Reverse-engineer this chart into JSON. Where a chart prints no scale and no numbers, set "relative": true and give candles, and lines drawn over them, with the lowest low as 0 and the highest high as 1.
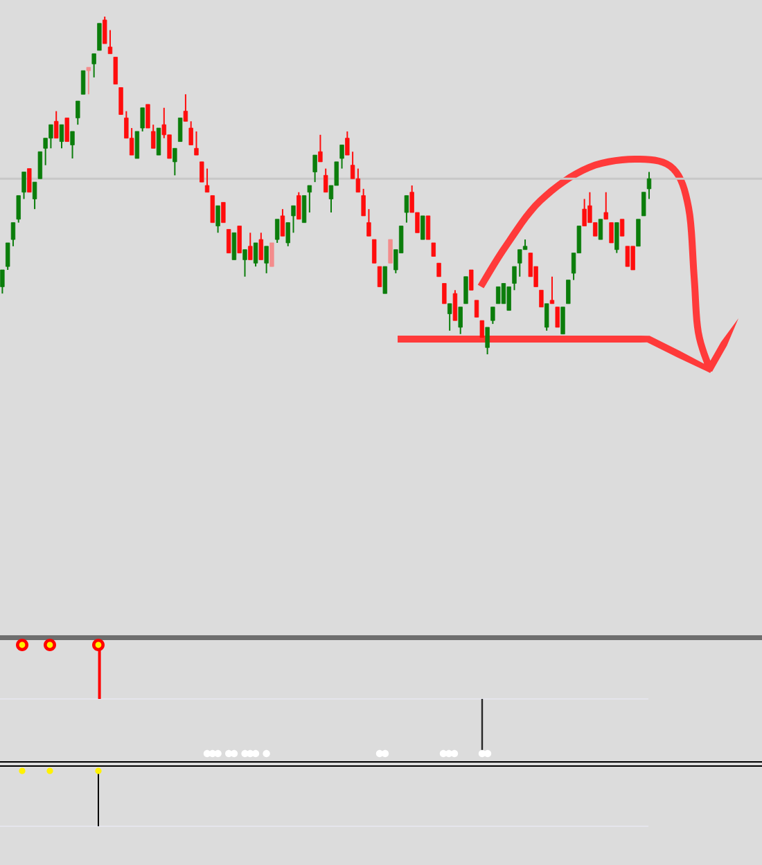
{
  "chart_data": [
    {
      "type": "candlestick",
      "relative": true,
      "categories": [
        null,
        null,
        null,
        null,
        null,
        null,
        null,
        null,
        null,
        null,
        null,
        null,
        null,
        null,
        null,
        null,
        null,
        null,
        null,
        null,
        null,
        null,
        null,
        null,
        null,
        null,
        null,
        null,
        null,
        null,
        null,
        null,
        null,
        null,
        null,
        null,
        null,
        null,
        null,
        null,
        null,
        null,
        null,
        null,
        null,
        null,
        null,
        null,
        null,
        null,
        null,
        null,
        null,
        null,
        null,
        null,
        null,
        null,
        null,
        null,
        null,
        null,
        null,
        null,
        null,
        null,
        null,
        null,
        null,
        null,
        null,
        null,
        null,
        null,
        null,
        null,
        null,
        null,
        null,
        null,
        null,
        null,
        null,
        null,
        null,
        null,
        null,
        null,
        null,
        null,
        null,
        null,
        null,
        null,
        null,
        null,
        null,
        null,
        null,
        null,
        null,
        null,
        null,
        null,
        null,
        null,
        null,
        null,
        null,
        null,
        null,
        null,
        null,
        null,
        null,
        null,
        null,
        null,
        null,
        null,
        null
      ],
      "ohlc": [
        [
          0.2,
          0.25,
          0.18,
          0.25
        ],
        [
          0.26,
          0.33,
          0.25,
          0.33
        ],
        [
          0.34,
          0.39,
          0.32,
          0.39
        ],
        [
          0.4,
          0.47,
          0.39,
          0.47
        ],
        [
          0.48,
          0.54,
          0.46,
          0.54
        ],
        [
          0.55,
          0.55,
          0.48,
          0.48
        ],
        [
          0.46,
          0.51,
          0.43,
          0.51
        ],
        [
          0.52,
          0.6,
          0.52,
          0.6
        ],
        [
          0.61,
          0.64,
          0.56,
          0.64
        ],
        [
          0.64,
          0.68,
          0.61,
          0.68
        ],
        [
          0.69,
          0.72,
          0.64,
          0.64
        ],
        [
          0.63,
          0.68,
          0.61,
          0.68
        ],
        [
          0.7,
          0.7,
          0.63,
          0.63
        ],
        [
          0.62,
          0.66,
          0.58,
          0.66
        ],
        [
          0.7,
          0.75,
          0.68,
          0.75
        ],
        [
          0.77,
          0.84,
          0.77,
          0.84
        ],
        [
          0.85,
          0.85,
          0.77,
          0.84
        ],
        [
          0.86,
          0.89,
          0.82,
          0.89
        ],
        [
          0.9,
          0.98,
          0.9,
          0.98
        ],
        [
          0.99,
          1,
          0.92,
          0.92
        ],
        [
          0.91,
          0.96,
          0.89,
          0.89
        ],
        [
          0.88,
          0.88,
          0.8,
          0.8
        ],
        [
          0.79,
          0.79,
          0.71,
          0.71
        ],
        [
          0.7,
          0.72,
          0.64,
          0.64
        ],
        [
          0.64,
          0.67,
          0.59,
          0.59
        ],
        [
          0.58,
          0.66,
          0.58,
          0.66
        ],
        [
          0.67,
          0.73,
          0.66,
          0.73
        ],
        [
          0.74,
          0.74,
          0.67,
          0.67
        ],
        [
          0.66,
          0.68,
          0.61,
          0.61
        ],
        [
          0.59,
          0.67,
          0.59,
          0.67
        ],
        [
          0.68,
          0.73,
          0.64,
          0.65
        ],
        [
          0.65,
          0.65,
          0.58,
          0.58
        ],
        [
          0.57,
          0.61,
          0.53,
          0.61
        ],
        [
          0.63,
          0.7,
          0.63,
          0.7
        ],
        [
          0.72,
          0.77,
          0.69,
          0.69
        ],
        [
          0.67,
          0.69,
          0.62,
          0.62
        ],
        [
          0.61,
          0.66,
          0.59,
          0.59
        ],
        [
          0.57,
          0.57,
          0.51,
          0.51
        ],
        [
          0.5,
          0.55,
          0.48,
          0.48
        ],
        [
          0.47,
          0.47,
          0.39,
          0.39
        ],
        [
          0.38,
          0.44,
          0.36,
          0.44
        ],
        [
          0.45,
          0.45,
          0.39,
          0.39
        ],
        [
          0.37,
          0.37,
          0.3,
          0.3
        ],
        [
          0.28,
          0.36,
          0.28,
          0.36
        ],
        [
          0.38,
          0.38,
          0.3,
          0.3
        ],
        [
          0.28,
          0.31,
          0.23,
          0.31
        ],
        [
          0.32,
          0.36,
          0.28,
          0.28
        ],
        [
          0.27,
          0.33,
          0.26,
          0.33
        ],
        [
          0.34,
          0.36,
          0.28,
          0.28
        ],
        [
          0.27,
          0.32,
          0.24,
          0.32
        ],
        [
          0.33,
          0.33,
          0.26,
          0.26
        ],
        [
          0.34,
          0.4,
          0.33,
          0.4
        ],
        [
          0.41,
          0.43,
          0.35,
          0.35
        ],
        [
          0.33,
          0.39,
          0.32,
          0.39
        ],
        [
          0.41,
          0.44,
          0.36,
          0.44
        ],
        [
          0.47,
          0.48,
          0.4,
          0.4
        ],
        [
          0.39,
          0.47,
          0.39,
          0.47
        ],
        [
          0.48,
          0.5,
          0.42,
          0.5
        ],
        [
          0.54,
          0.59,
          0.51,
          0.59
        ],
        [
          0.6,
          0.65,
          0.57,
          0.57
        ],
        [
          0.53,
          0.55,
          0.48,
          0.48
        ],
        [
          0.46,
          0.5,
          0.42,
          0.5
        ],
        [
          0.5,
          0.57,
          0.5,
          0.57
        ],
        [
          0.58,
          0.62,
          0.55,
          0.62
        ],
        [
          0.64,
          0.66,
          0.59,
          0.59
        ],
        [
          0.56,
          0.6,
          0.52,
          0.52
        ],
        [
          0.52,
          0.55,
          0.48,
          0.48
        ],
        [
          0.47,
          0.49,
          0.41,
          0.41
        ],
        [
          0.39,
          0.43,
          0.35,
          0.35
        ],
        [
          0.34,
          0.34,
          0.27,
          0.27
        ],
        [
          0.26,
          0.26,
          0.2,
          0.2
        ],
        [
          0.18,
          0.26,
          0.18,
          0.26
        ],
        [
          0.34,
          0.34,
          0.27,
          0.27
        ],
        [
          0.25,
          0.31,
          0.24,
          0.31
        ],
        [
          0.3,
          0.38,
          0.3,
          0.38
        ],
        [
          0.42,
          0.47,
          0.39,
          0.47
        ],
        [
          0.48,
          0.5,
          0.42,
          0.42
        ],
        [
          0.42,
          0.42,
          0.36,
          0.36
        ],
        [
          0.34,
          0.41,
          0.34,
          0.41
        ],
        [
          0.41,
          0.41,
          0.34,
          0.34
        ],
        [
          0.33,
          0.33,
          0.29,
          0.29
        ],
        [
          0.27,
          0.27,
          0.23,
          0.23
        ],
        [
          0.21,
          0.21,
          0.15,
          0.15
        ],
        [
          0.12,
          0.15,
          0.07,
          0.15
        ],
        [
          0.18,
          0.19,
          0.1,
          0.1
        ],
        [
          0.08,
          0.14,
          0.06,
          0.14
        ],
        [
          0.15,
          0.23,
          0.15,
          0.23
        ],
        [
          0.25,
          0.25,
          0.19,
          0.19
        ],
        [
          0.16,
          0.16,
          0.11,
          0.11
        ],
        [
          0.1,
          0.1,
          0.05,
          0.05
        ],
        [
          0.02,
          0.08,
          0,
          0.08
        ],
        [
          0.1,
          0.14,
          0.09,
          0.14
        ],
        [
          0.15,
          0.2,
          0.15,
          0.2
        ],
        [
          0.15,
          0.21,
          0.15,
          0.21
        ],
        [
          0.13,
          0.2,
          0.13,
          0.2
        ],
        [
          0.21,
          0.26,
          0.19,
          0.26
        ],
        [
          0.27,
          0.31,
          0.23,
          0.31
        ],
        [
          0.31,
          0.34,
          0.31,
          0.32
        ],
        [
          0.3,
          0.3,
          0.23,
          0.23
        ],
        [
          0.26,
          0.26,
          0.2,
          0.2
        ],
        [
          0.19,
          0.19,
          0.14,
          0.14
        ],
        [
          0.08,
          0.15,
          0.07,
          0.15
        ],
        [
          0.16,
          0.23,
          0.15,
          0.15
        ],
        [
          0.14,
          0.14,
          0.08,
          0.08
        ],
        [
          0.06,
          0.14,
          0.06,
          0.14
        ],
        [
          0.15,
          0.22,
          0.15,
          0.22
        ],
        [
          0.24,
          0.3,
          0.22,
          0.3
        ],
        [
          0.3,
          0.38,
          0.3,
          0.38
        ],
        [
          0.43,
          0.46,
          0.38,
          0.38
        ],
        [
          0.44,
          0.48,
          0.39,
          0.39
        ],
        [
          0.39,
          0.39,
          0.35,
          0.35
        ],
        [
          0.34,
          0.4,
          0.34,
          0.4
        ],
        [
          0.42,
          0.48,
          0.4,
          0.4
        ],
        [
          0.39,
          0.39,
          0.33,
          0.33
        ],
        [
          0.31,
          0.39,
          0.3,
          0.39
        ],
        [
          0.4,
          0.4,
          0.35,
          0.35
        ],
        [
          0.32,
          0.32,
          0.26,
          0.26
        ],
        [
          0.32,
          0.32,
          0.25,
          0.25
        ],
        [
          0.32,
          0.4,
          0.32,
          0.4
        ],
        [
          0.41,
          0.48,
          0.41,
          0.48
        ],
        [
          0.49,
          0.54,
          0.46,
          0.52
        ]
      ],
      "colors": [
        "#0b7d0b",
        "#0b7d0b",
        "#0b7d0b",
        "#0b7d0b",
        "#0b7d0b",
        "#ff0d0d",
        "#0b7d0b",
        "#0b7d0b",
        "#0b7d0b",
        "#0b7d0b",
        "#ff0d0d",
        "#0b7d0b",
        "#ff0d0d",
        "#0b7d0b",
        "#0b7d0b",
        "#0b7d0b",
        "#f48c8c",
        "#0b7d0b",
        "#0b7d0b",
        "#ff0d0d",
        "#ff0d0d",
        "#ff0d0d",
        "#ff0d0d",
        "#ff0d0d",
        "#ff0d0d",
        "#0b7d0b",
        "#0b7d0b",
        "#ff0d0d",
        "#ff0d0d",
        "#0b7d0b",
        "#ff0d0d",
        "#ff0d0d",
        "#0b7d0b",
        "#0b7d0b",
        "#ff0d0d",
        "#ff0d0d",
        "#ff0d0d",
        "#ff0d0d",
        "#ff0d0d",
        "#ff0d0d",
        "#0b7d0b",
        "#ff0d0d",
        "#ff0d0d",
        "#0b7d0b",
        "#ff0d0d",
        "#0b7d0b",
        "#ff0d0d",
        "#0b7d0b",
        "#ff0d0d",
        "#0b7d0b",
        "#f48c8c",
        "#0b7d0b",
        "#ff0d0d",
        "#0b7d0b",
        "#0b7d0b",
        "#ff0d0d",
        "#0b7d0b",
        "#0b7d0b",
        "#0b7d0b",
        "#ff0d0d",
        "#ff0d0d",
        "#0b7d0b",
        "#0b7d0b",
        "#0b7d0b",
        "#ff0d0d",
        "#ff0d0d",
        "#ff0d0d",
        "#ff0d0d",
        "#ff0d0d",
        "#ff0d0d",
        "#ff0d0d",
        "#0b7d0b",
        "#f48c8c",
        "#0b7d0b",
        "#0b7d0b",
        "#0b7d0b",
        "#ff0d0d",
        "#ff0d0d",
        "#0b7d0b",
        "#ff0d0d",
        "#ff0d0d",
        "#ff0d0d",
        "#ff0d0d",
        "#0b7d0b",
        "#ff0d0d",
        "#0b7d0b",
        "#0b7d0b",
        "#ff0d0d",
        "#ff0d0d",
        "#ff0d0d",
        "#0b7d0b",
        "#0b7d0b",
        "#0b7d0b",
        "#0b7d0b",
        "#0b7d0b",
        "#0b7d0b",
        "#0b7d0b",
        "#0b7d0b",
        "#ff0d0d",
        "#ff0d0d",
        "#ff0d0d",
        "#0b7d0b",
        "#ff0d0d",
        "#ff0d0d",
        "#0b7d0b",
        "#0b7d0b",
        "#0b7d0b",
        "#0b7d0b",
        "#ff0d0d",
        "#ff0d0d",
        "#ff0d0d",
        "#0b7d0b",
        "#ff0d0d",
        "#ff0d0d",
        "#0b7d0b",
        "#ff0d0d",
        "#ff0d0d",
        "#ff0d0d",
        "#0b7d0b",
        "#0b7d0b",
        "#0b7d0b"
      ],
      "ref_lines": [
        {
          "axis": "y",
          "value": 0.52,
          "color": "#c8c8c8"
        }
      ]
    }
  ]
}
